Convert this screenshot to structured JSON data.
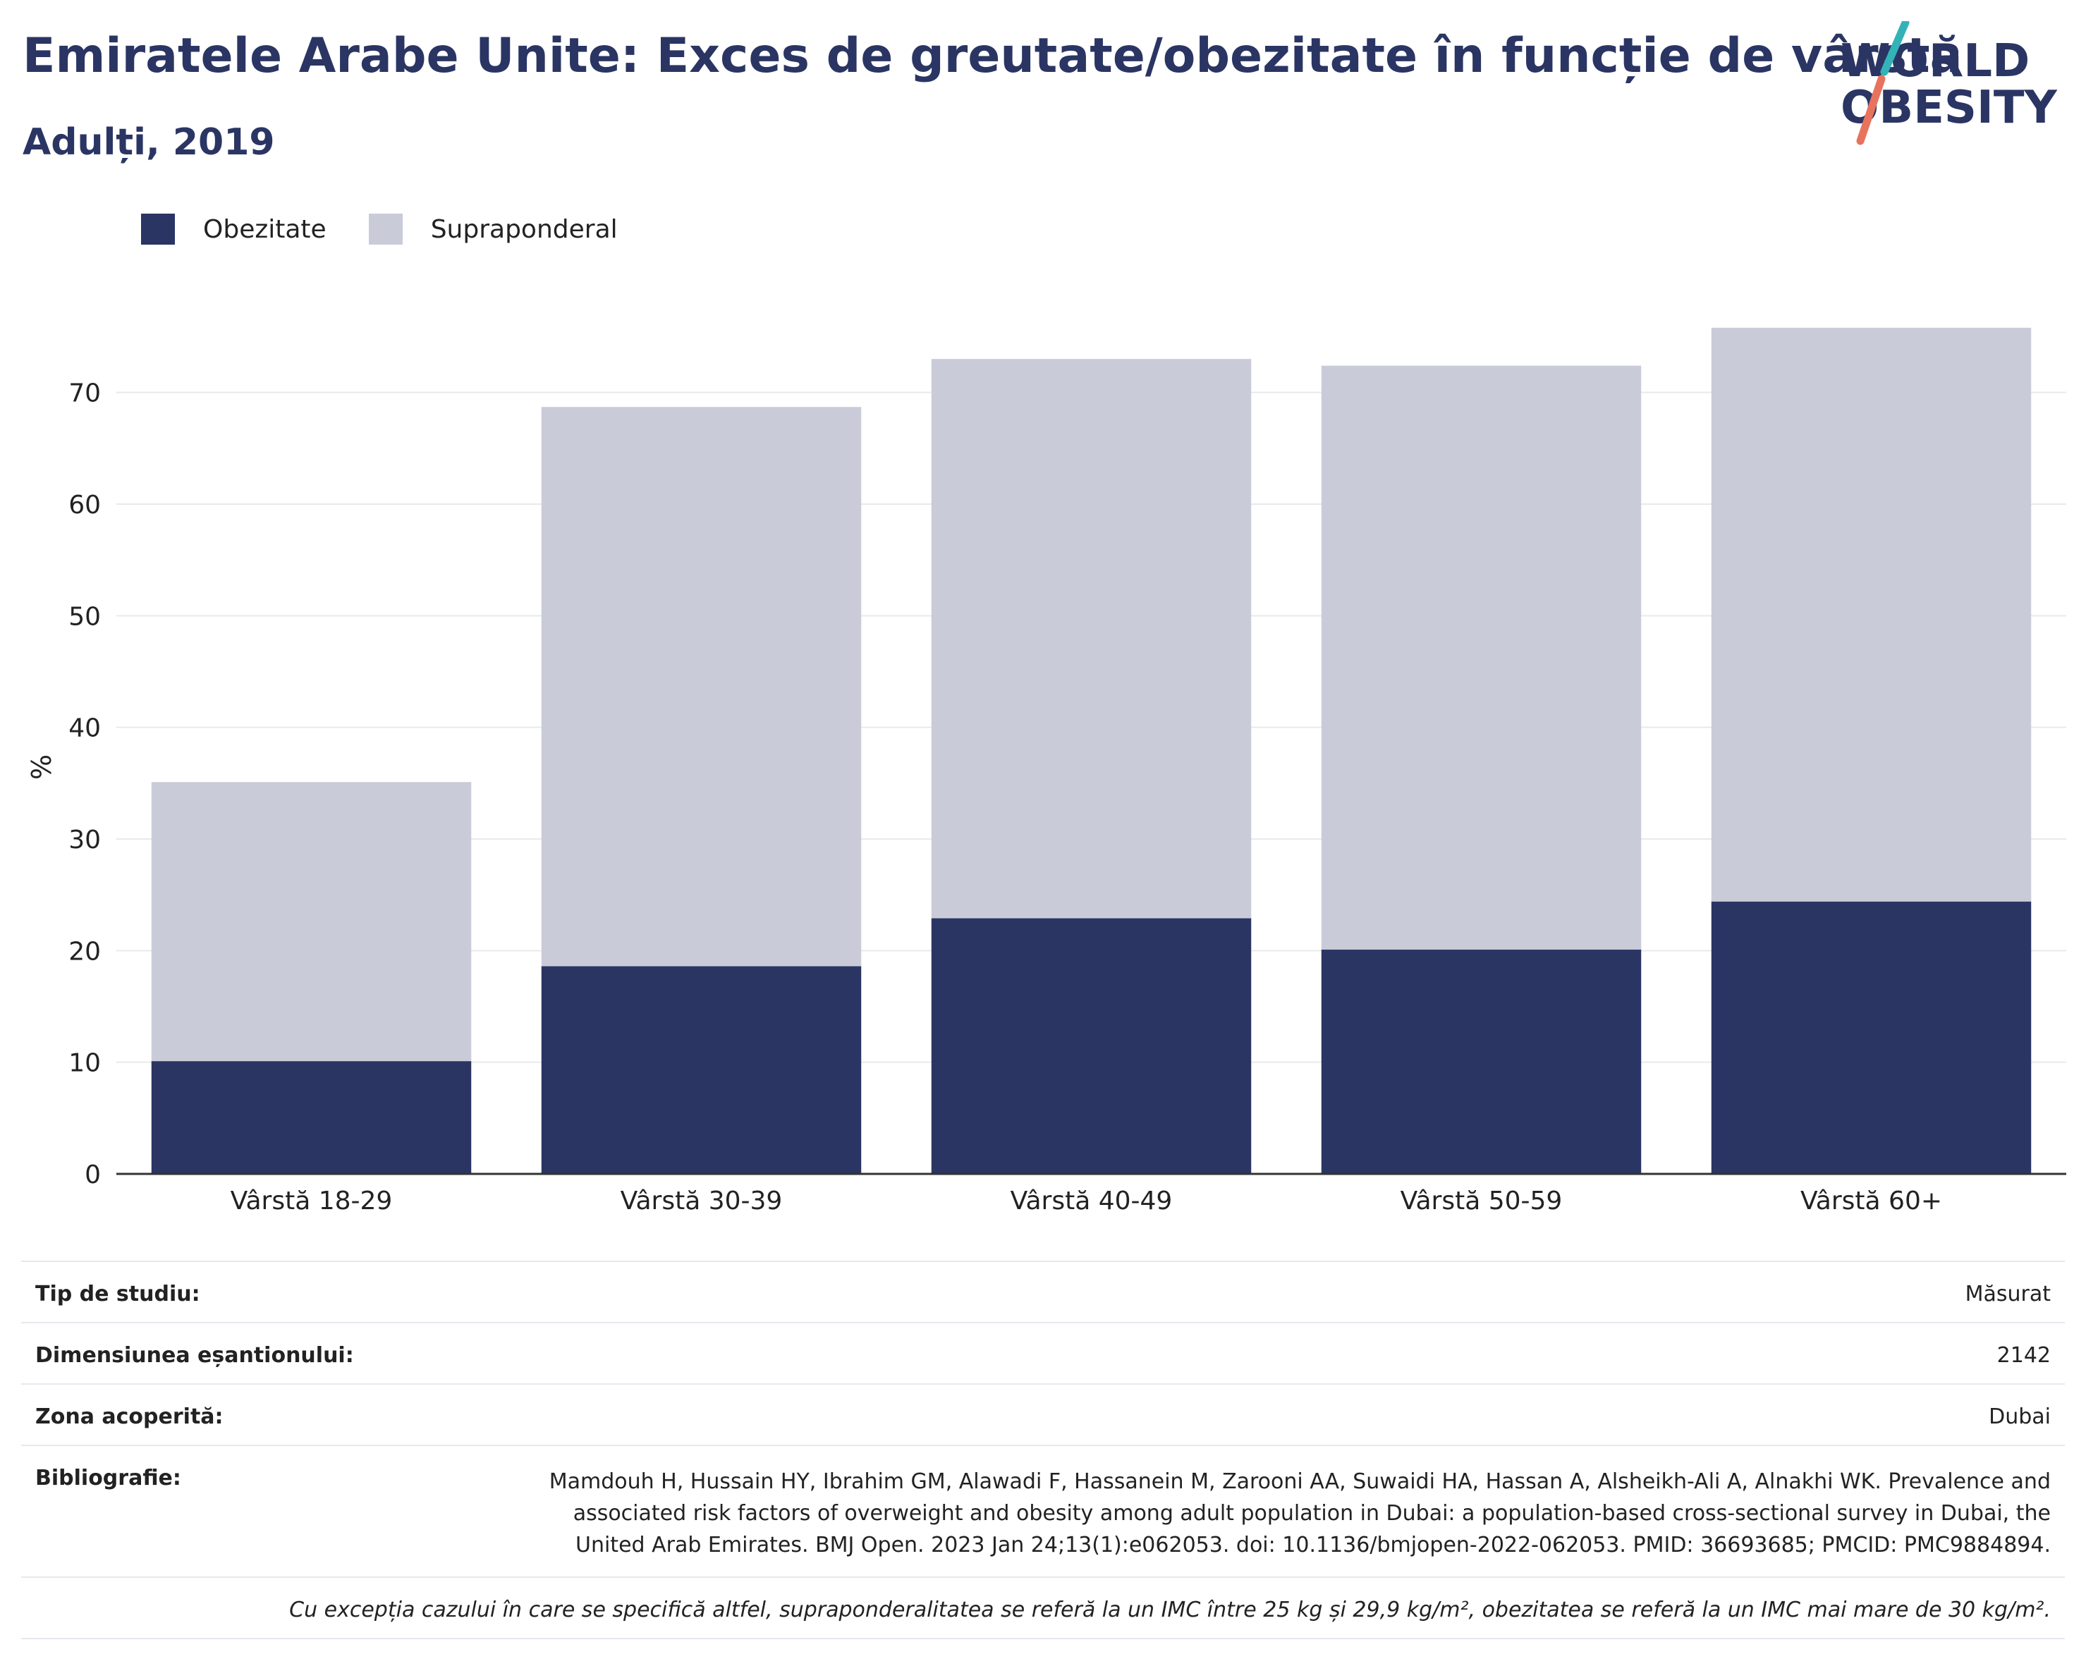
{
  "header": {
    "title": "Emiratele Arabe Unite: Exces de greutate/obezitate în funcție de vârstă",
    "subtitle": "Adulți, 2019"
  },
  "logo": {
    "line1": "WORLD",
    "line2": "OBESITY",
    "slash_top_color": "#33b3b8",
    "slash_bottom_color": "#e8735c"
  },
  "colors": {
    "obesity": "#2a3563",
    "overweight": "#c9ccd8",
    "grid": "#e8e9ee",
    "axis": "#333333"
  },
  "chart_data": {
    "type": "bar",
    "stacked": true,
    "categories": [
      "Vârstă 18-29",
      "Vârstă 30-39",
      "Vârstă 40-49",
      "Vârstă 50-59",
      "Vârstă 60+"
    ],
    "series": [
      {
        "name": "Obezitate",
        "values": [
          10.1,
          18.6,
          22.9,
          20.1,
          24.4
        ]
      },
      {
        "name": "Supraponderal",
        "values": [
          25.0,
          50.1,
          50.1,
          52.3,
          51.4
        ]
      }
    ],
    "ylabel": "%",
    "ylim": [
      0,
      78
    ],
    "yticks": [
      0,
      10,
      20,
      30,
      40,
      50,
      60,
      70
    ],
    "grid": true,
    "legend": "top-left"
  },
  "info": {
    "rows": [
      {
        "label": "Tip de studiu:",
        "value": "Măsurat"
      },
      {
        "label": "Dimensiunea eșantionului:",
        "value": "2142"
      },
      {
        "label": "Zona acoperită:",
        "value": "Dubai"
      },
      {
        "label": "Bibliografie:",
        "value": "Mamdouh H, Hussain HY, Ibrahim GM, Alawadi F, Hassanein M, Zarooni AA, Suwaidi HA, Hassan A, Alsheikh-Ali A, Alnakhi WK. Prevalence and associated risk factors of overweight and obesity among adult population in Dubai: a population-based cross-sectional survey in Dubai, the United Arab Emirates. BMJ Open. 2023 Jan 24;13(1):e062053. doi: 10.1136/bmjopen-2022-062053. PMID: 36693685; PMCID: PMC9884894."
      }
    ],
    "footnote": "Cu excepția cazului în care se specifică altfel, supraponderalitatea se referă la un IMC între 25 kg și 29,9 kg/m², obezitatea se referă la un IMC mai mare de 30 kg/m²."
  }
}
